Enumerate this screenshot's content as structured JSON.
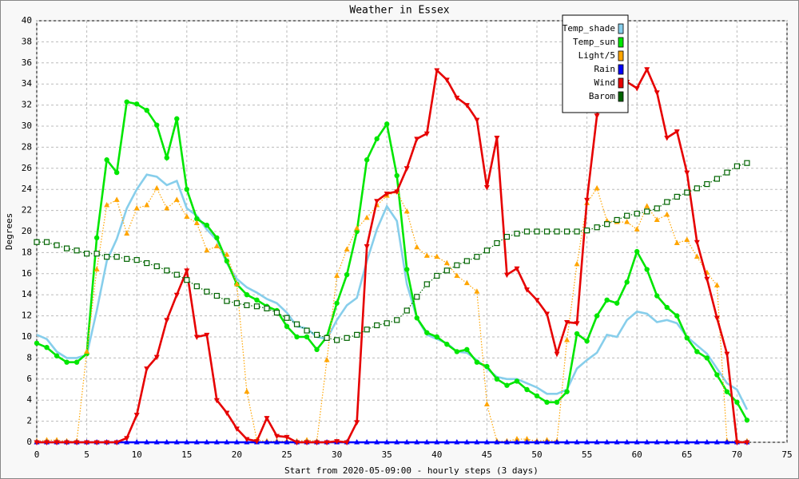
{
  "chart_data": {
    "type": "line",
    "title": "Weather in Essex",
    "x_label": "Start from 2020-05-09:00 - hourly steps (3 days)",
    "y_label": "Degrees",
    "x": [
      0,
      1,
      2,
      3,
      4,
      5,
      6,
      7,
      8,
      9,
      10,
      11,
      12,
      13,
      14,
      15,
      16,
      17,
      18,
      19,
      20,
      21,
      22,
      23,
      24,
      25,
      26,
      27,
      28,
      29,
      30,
      31,
      32,
      33,
      34,
      35,
      36,
      37,
      38,
      39,
      40,
      41,
      42,
      43,
      44,
      45,
      46,
      47,
      48,
      49,
      50,
      51,
      52,
      53,
      54,
      55,
      56,
      57,
      58,
      59,
      60,
      61,
      62,
      63,
      64,
      65,
      66,
      67,
      68,
      69,
      70,
      71
    ],
    "xlim": [
      0,
      75
    ],
    "xticks": [
      0,
      5,
      10,
      15,
      20,
      25,
      30,
      35,
      40,
      45,
      50,
      55,
      60,
      65,
      70,
      75
    ],
    "ylim": [
      0,
      40
    ],
    "yticks": [
      0,
      2,
      4,
      6,
      8,
      10,
      12,
      14,
      16,
      18,
      20,
      22,
      24,
      26,
      28,
      30,
      32,
      34,
      36,
      38,
      40
    ],
    "grid": true,
    "legend": "top-right",
    "series": [
      {
        "name": "Temp_shade",
        "color": "#87ceeb",
        "style": "thick",
        "marker": "none",
        "values": [
          10.2,
          9.8,
          8.6,
          8.0,
          8.0,
          8.3,
          12.5,
          17.2,
          19.3,
          22.2,
          24.0,
          25.4,
          25.2,
          24.4,
          24.8,
          22.2,
          21.5,
          20.2,
          19.2,
          17.0,
          15.5,
          14.7,
          14.2,
          13.6,
          13.2,
          12.3,
          11.0,
          10.8,
          10.0,
          9.8,
          11.6,
          13.0,
          13.7,
          17.2,
          20.2,
          22.4,
          21.0,
          15.0,
          11.8,
          10.2,
          9.8,
          9.4,
          8.6,
          8.5,
          7.8,
          7.0,
          6.2,
          6.0,
          6.0,
          5.6,
          5.2,
          4.6,
          4.6,
          5.0,
          7.0,
          7.8,
          8.5,
          10.2,
          10.0,
          11.6,
          12.4,
          12.2,
          11.4,
          11.6,
          11.3,
          10.0,
          9.2,
          8.4,
          7.0,
          5.6,
          5.0,
          3.1
        ]
      },
      {
        "name": "Temp_sun",
        "color": "#00e600",
        "style": "thick",
        "marker": "circle",
        "values": [
          9.4,
          9.0,
          8.2,
          7.6,
          7.6,
          8.4,
          19.4,
          26.8,
          25.6,
          32.3,
          32.1,
          31.5,
          30.1,
          27.0,
          30.7,
          24.0,
          21.2,
          20.6,
          19.4,
          17.2,
          15.0,
          14.0,
          13.5,
          12.9,
          12.5,
          11.0,
          10.0,
          10.0,
          8.8,
          10.0,
          13.2,
          15.9,
          20.0,
          26.8,
          28.8,
          30.2,
          25.3,
          16.4,
          11.8,
          10.4,
          10.0,
          9.3,
          8.6,
          8.8,
          7.6,
          7.2,
          6.0,
          5.4,
          5.8,
          5.0,
          4.4,
          3.8,
          3.8,
          4.8,
          10.3,
          9.6,
          12.0,
          13.5,
          13.2,
          15.2,
          18.1,
          16.4,
          13.9,
          12.8,
          12.0,
          9.9,
          8.6,
          8.0,
          6.4,
          4.8,
          3.8,
          2.1
        ]
      },
      {
        "name": "Light/5",
        "color": "#ffa500",
        "style": "dotted",
        "marker": "triangle-up",
        "values": [
          0.1,
          0.2,
          0.2,
          0.1,
          0.1,
          8.6,
          16.4,
          22.5,
          23.0,
          19.8,
          22.2,
          22.5,
          24.1,
          22.2,
          23.0,
          21.4,
          20.8,
          18.2,
          18.6,
          17.8,
          15.0,
          4.8,
          0.2,
          0.1,
          0.1,
          0.1,
          0.1,
          0.2,
          0.1,
          7.8,
          15.8,
          18.3,
          20.3,
          21.3,
          22.5,
          23.4,
          23.8,
          21.9,
          18.5,
          17.7,
          17.6,
          17.0,
          15.8,
          15.1,
          14.3,
          3.6,
          0.1,
          0.1,
          0.3,
          0.3,
          0.1,
          0.2,
          0.1,
          9.7,
          16.9,
          22.7,
          24.1,
          21.0,
          20.9,
          20.9,
          20.2,
          22.4,
          21.1,
          21.6,
          18.9,
          19.2,
          17.6,
          16.1,
          14.9,
          0.1,
          0.1,
          0.1
        ]
      },
      {
        "name": "Rain",
        "color": "#0000ff",
        "style": "thick",
        "marker": "triangle-up",
        "values": [
          0,
          0,
          0,
          0,
          0,
          0,
          0,
          0,
          0,
          0,
          0,
          0,
          0,
          0,
          0,
          0,
          0,
          0,
          0,
          0,
          0,
          0,
          0,
          0,
          0,
          0,
          0,
          0,
          0,
          0,
          0,
          0,
          0,
          0,
          0,
          0,
          0,
          0,
          0,
          0,
          0,
          0,
          0,
          0,
          0,
          0,
          0,
          0,
          0,
          0,
          0,
          0,
          0,
          0,
          0,
          0,
          0,
          0,
          0,
          0,
          0,
          0,
          0,
          0,
          0,
          0,
          0,
          0,
          0,
          0,
          0,
          0
        ]
      },
      {
        "name": "Wind",
        "color": "#e60000",
        "style": "thick",
        "marker": "triangle-down",
        "values": [
          0,
          0,
          0,
          0,
          0,
          0,
          0,
          0,
          0,
          0.4,
          2.6,
          7.0,
          8.1,
          11.6,
          14.0,
          16.3,
          10.0,
          10.2,
          4.0,
          2.8,
          1.3,
          0.3,
          0.1,
          2.3,
          0.6,
          0.5,
          0,
          0,
          0,
          0,
          0.1,
          0,
          1.9,
          18.6,
          22.9,
          23.6,
          23.8,
          26.0,
          28.8,
          29.3,
          35.3,
          34.4,
          32.7,
          32.0,
          30.6,
          24.2,
          28.9,
          15.9,
          16.5,
          14.5,
          13.5,
          12.2,
          8.4,
          11.4,
          11.3,
          23.0,
          31.0,
          36.0,
          35.0,
          34.2,
          33.6,
          35.4,
          33.2,
          28.9,
          29.5,
          25.6,
          19.0,
          15.5,
          11.8,
          8.4,
          0,
          0
        ]
      },
      {
        "name": "Barom",
        "color": "#006400",
        "style": "dotted",
        "marker": "square",
        "values": [
          19.0,
          19.0,
          18.7,
          18.4,
          18.2,
          17.9,
          17.9,
          17.6,
          17.6,
          17.4,
          17.3,
          17.0,
          16.7,
          16.3,
          15.9,
          15.4,
          14.8,
          14.3,
          13.9,
          13.4,
          13.2,
          13.0,
          12.9,
          12.7,
          12.3,
          11.8,
          11.2,
          10.6,
          10.2,
          9.9,
          9.7,
          9.9,
          10.2,
          10.7,
          11.1,
          11.3,
          11.6,
          12.5,
          13.8,
          15.0,
          15.8,
          16.3,
          16.8,
          17.2,
          17.6,
          18.2,
          18.9,
          19.5,
          19.8,
          20.0,
          20.0,
          20.0,
          20.0,
          20.0,
          20.0,
          20.1,
          20.4,
          20.7,
          21.1,
          21.5,
          21.7,
          21.9,
          22.2,
          22.8,
          23.3,
          23.7,
          24.1,
          24.5,
          25.0,
          25.6,
          26.2,
          26.5
        ]
      }
    ]
  }
}
